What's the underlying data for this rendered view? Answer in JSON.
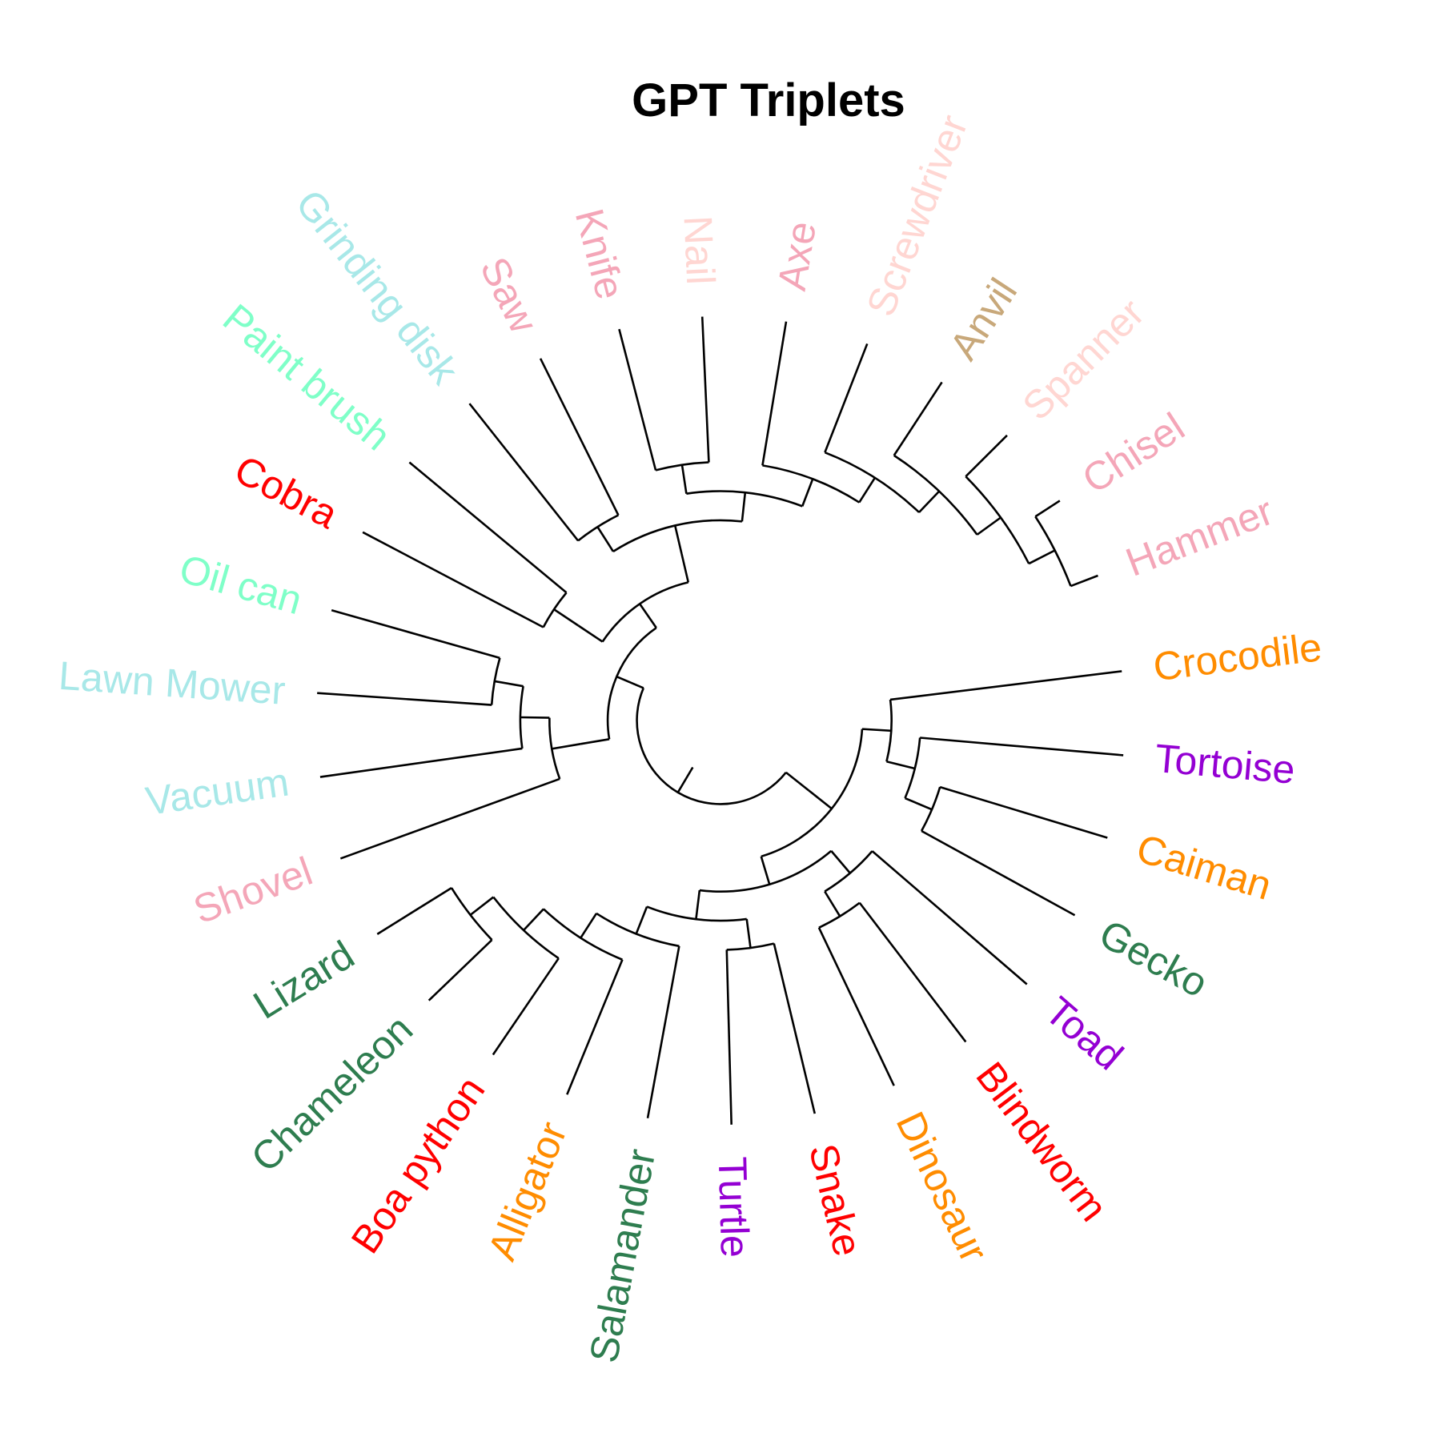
{
  "title": "GPT Triplets",
  "colors": {
    "orange": "#FF8C00",
    "purple": "#9400D3",
    "darkgreen": "#2E7D4F",
    "red": "#FF0000",
    "aquamarine": "#7FFFC8",
    "paleturquoise": "#A8E8E8",
    "pink": "#F4A6B8",
    "mistyrose": "#FFD6D2",
    "tan": "#C8A87A"
  },
  "diagram": {
    "type": "circular dendrogram",
    "leaves": [
      {
        "label": "Crocodile",
        "color_key": "orange"
      },
      {
        "label": "Tortoise",
        "color_key": "purple"
      },
      {
        "label": "Caiman",
        "color_key": "orange"
      },
      {
        "label": "Gecko",
        "color_key": "darkgreen"
      },
      {
        "label": "Toad",
        "color_key": "purple"
      },
      {
        "label": "Blindworm",
        "color_key": "red"
      },
      {
        "label": "Dinosaur",
        "color_key": "orange"
      },
      {
        "label": "Snake",
        "color_key": "red"
      },
      {
        "label": "Turtle",
        "color_key": "purple"
      },
      {
        "label": "Salamander",
        "color_key": "darkgreen"
      },
      {
        "label": "Alligator",
        "color_key": "orange"
      },
      {
        "label": "Boa python",
        "color_key": "red"
      },
      {
        "label": "Chameleon",
        "color_key": "darkgreen"
      },
      {
        "label": "Lizard",
        "color_key": "darkgreen"
      },
      {
        "label": "Shovel",
        "color_key": "pink"
      },
      {
        "label": "Vacuum",
        "color_key": "paleturquoise"
      },
      {
        "label": "Lawn Mower",
        "color_key": "paleturquoise"
      },
      {
        "label": "Oil can",
        "color_key": "aquamarine"
      },
      {
        "label": "Cobra",
        "color_key": "red"
      },
      {
        "label": "Paint brush",
        "color_key": "aquamarine"
      },
      {
        "label": "Grinding disk",
        "color_key": "paleturquoise"
      },
      {
        "label": "Saw",
        "color_key": "pink"
      },
      {
        "label": "Knife",
        "color_key": "pink"
      },
      {
        "label": "Nail",
        "color_key": "mistyrose"
      },
      {
        "label": "Axe",
        "color_key": "pink"
      },
      {
        "label": "Screwdriver",
        "color_key": "mistyrose"
      },
      {
        "label": "Anvil",
        "color_key": "tan"
      },
      {
        "label": "Spanner",
        "color_key": "mistyrose"
      },
      {
        "label": "Chisel",
        "color_key": "pink"
      },
      {
        "label": "Hammer",
        "color_key": "pink"
      }
    ],
    "tree": [
      [
        [
          [
            [
              "Crocodile",
              [
                "Tortoise",
                [
                  "Caiman",
                  "Gecko"
                ]
              ]
            ],
            [
              [
                "Toad",
                [
                  "Blindworm",
                  "Dinosaur"
                ]
              ],
              [
                [
                  "Snake",
                  "Turtle"
                ],
                [
                  "Salamander",
                  [
                    "Alligator",
                    [
                      "Boa python",
                      [
                        "Chameleon",
                        "Lizard"
                      ]
                    ]
                  ]
                ]
              ]
            ]
          ]
        ],
        [
          [
            [
              "Shovel",
              [
                "Vacuum",
                [
                  "Lawn Mower",
                  "Oil can"
                ]
              ]
            ]
          ],
          [
            [
              [
                "Cobra",
                "Paint brush"
              ]
            ],
            [
              [
                [
                  "Grinding disk",
                  "Saw"
                ],
                [
                  [
                    "Knife",
                    "Nail"
                  ],
                  [
                    "Axe",
                    [
                      "Screwdriver",
                      [
                        "Anvil",
                        [
                          "Spanner",
                          [
                            "Chisel",
                            "Hammer"
                          ]
                        ]
                      ]
                    ]
                  ]
                ]
              ]
            ]
          ]
        ]
      ]
    ]
  }
}
